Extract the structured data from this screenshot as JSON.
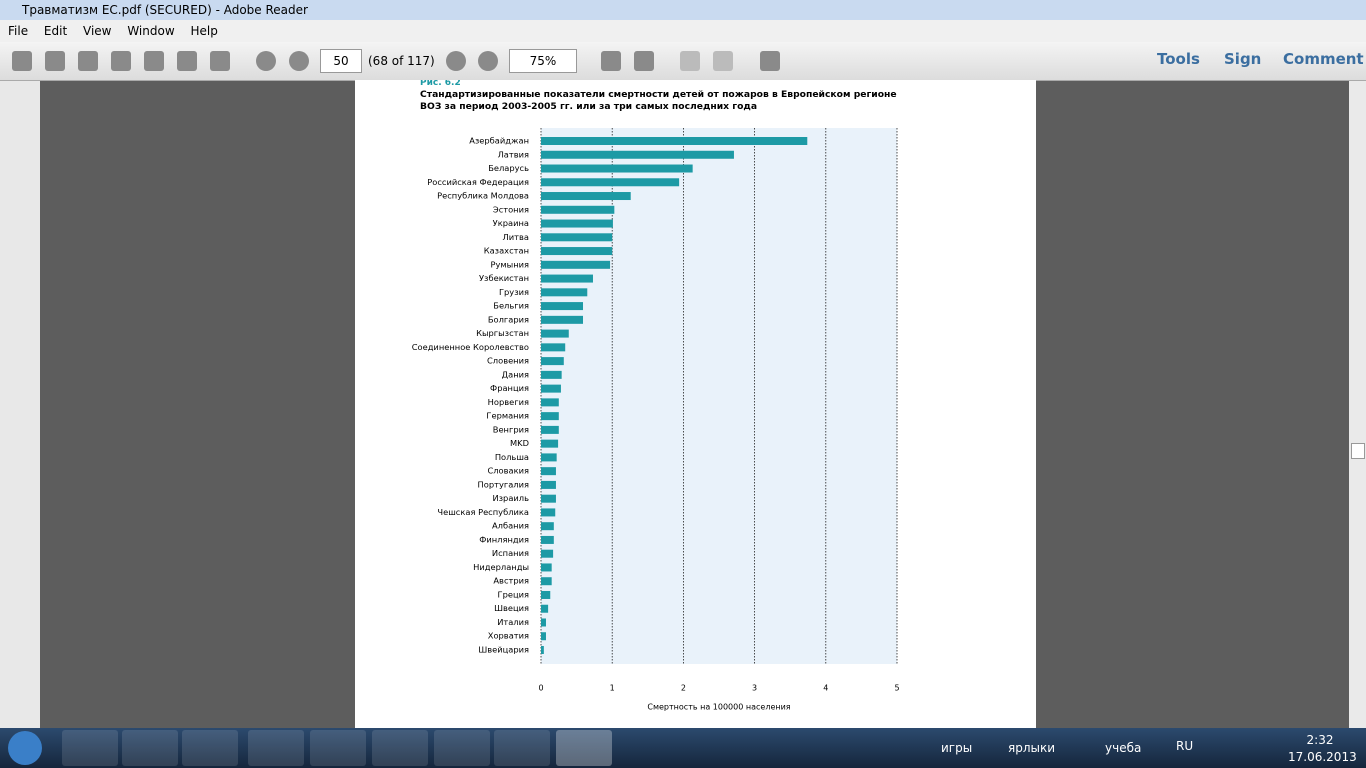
{
  "window": {
    "title": "Травматизм ЕС.pdf (SECURED) - Adobe Reader"
  },
  "menu": [
    "File",
    "Edit",
    "View",
    "Window",
    "Help"
  ],
  "toolbar": {
    "page": "50",
    "page_info": "(68 of 117)",
    "zoom": "75%",
    "tools": "Tools",
    "sign": "Sign",
    "comment": "Comment"
  },
  "taskbar": {
    "toolbars": [
      "игры",
      "ярлыки",
      "учеба"
    ],
    "language": "RU",
    "time": "2:32",
    "date": "17.06.2013"
  },
  "chart_data": {
    "type": "bar",
    "orientation": "horizontal",
    "figure_label": "Рис. 6.2",
    "title": "Стандартизированные показатели смертности детей от пожаров в Европейском регионе ВОЗ за период 2003-2005 гг. или за три самых последних года",
    "xlabel": "Смертность на 100000 населения",
    "categories": [
      "Азербайджан",
      "Латвия",
      "Беларусь",
      "Российская Федерация",
      "Республика Молдова",
      "Эстония",
      "Украина",
      "Литва",
      "Казахстан",
      "Румыния",
      "Узбекистан",
      "Грузия",
      "Бельгия",
      "Болгария",
      "Кыргызстан",
      "Соединенное Королевство",
      "Словения",
      "Дания",
      "Франция",
      "Норвегия",
      "Германия",
      "Венгрия",
      "MKD",
      "Польша",
      "Словакия",
      "Португалия",
      "Израиль",
      "Чешская Республика",
      "Албания",
      "Финляндия",
      "Испания",
      "Нидерланды",
      "Австрия",
      "Греция",
      "Швеция",
      "Италия",
      "Хорватия",
      "Швейцария"
    ],
    "values": [
      3.74,
      2.71,
      2.13,
      1.94,
      1.26,
      1.03,
      1.01,
      1.0,
      1.0,
      0.97,
      0.73,
      0.65,
      0.59,
      0.59,
      0.39,
      0.34,
      0.32,
      0.29,
      0.28,
      0.25,
      0.25,
      0.25,
      0.24,
      0.22,
      0.21,
      0.21,
      0.21,
      0.2,
      0.18,
      0.18,
      0.17,
      0.15,
      0.15,
      0.13,
      0.1,
      0.07,
      0.07,
      0.04
    ],
    "color": "#1d9aa5",
    "xlim": [
      0,
      5
    ],
    "xticks": [
      0,
      1,
      2,
      3,
      4,
      5
    ],
    "grid": true
  }
}
